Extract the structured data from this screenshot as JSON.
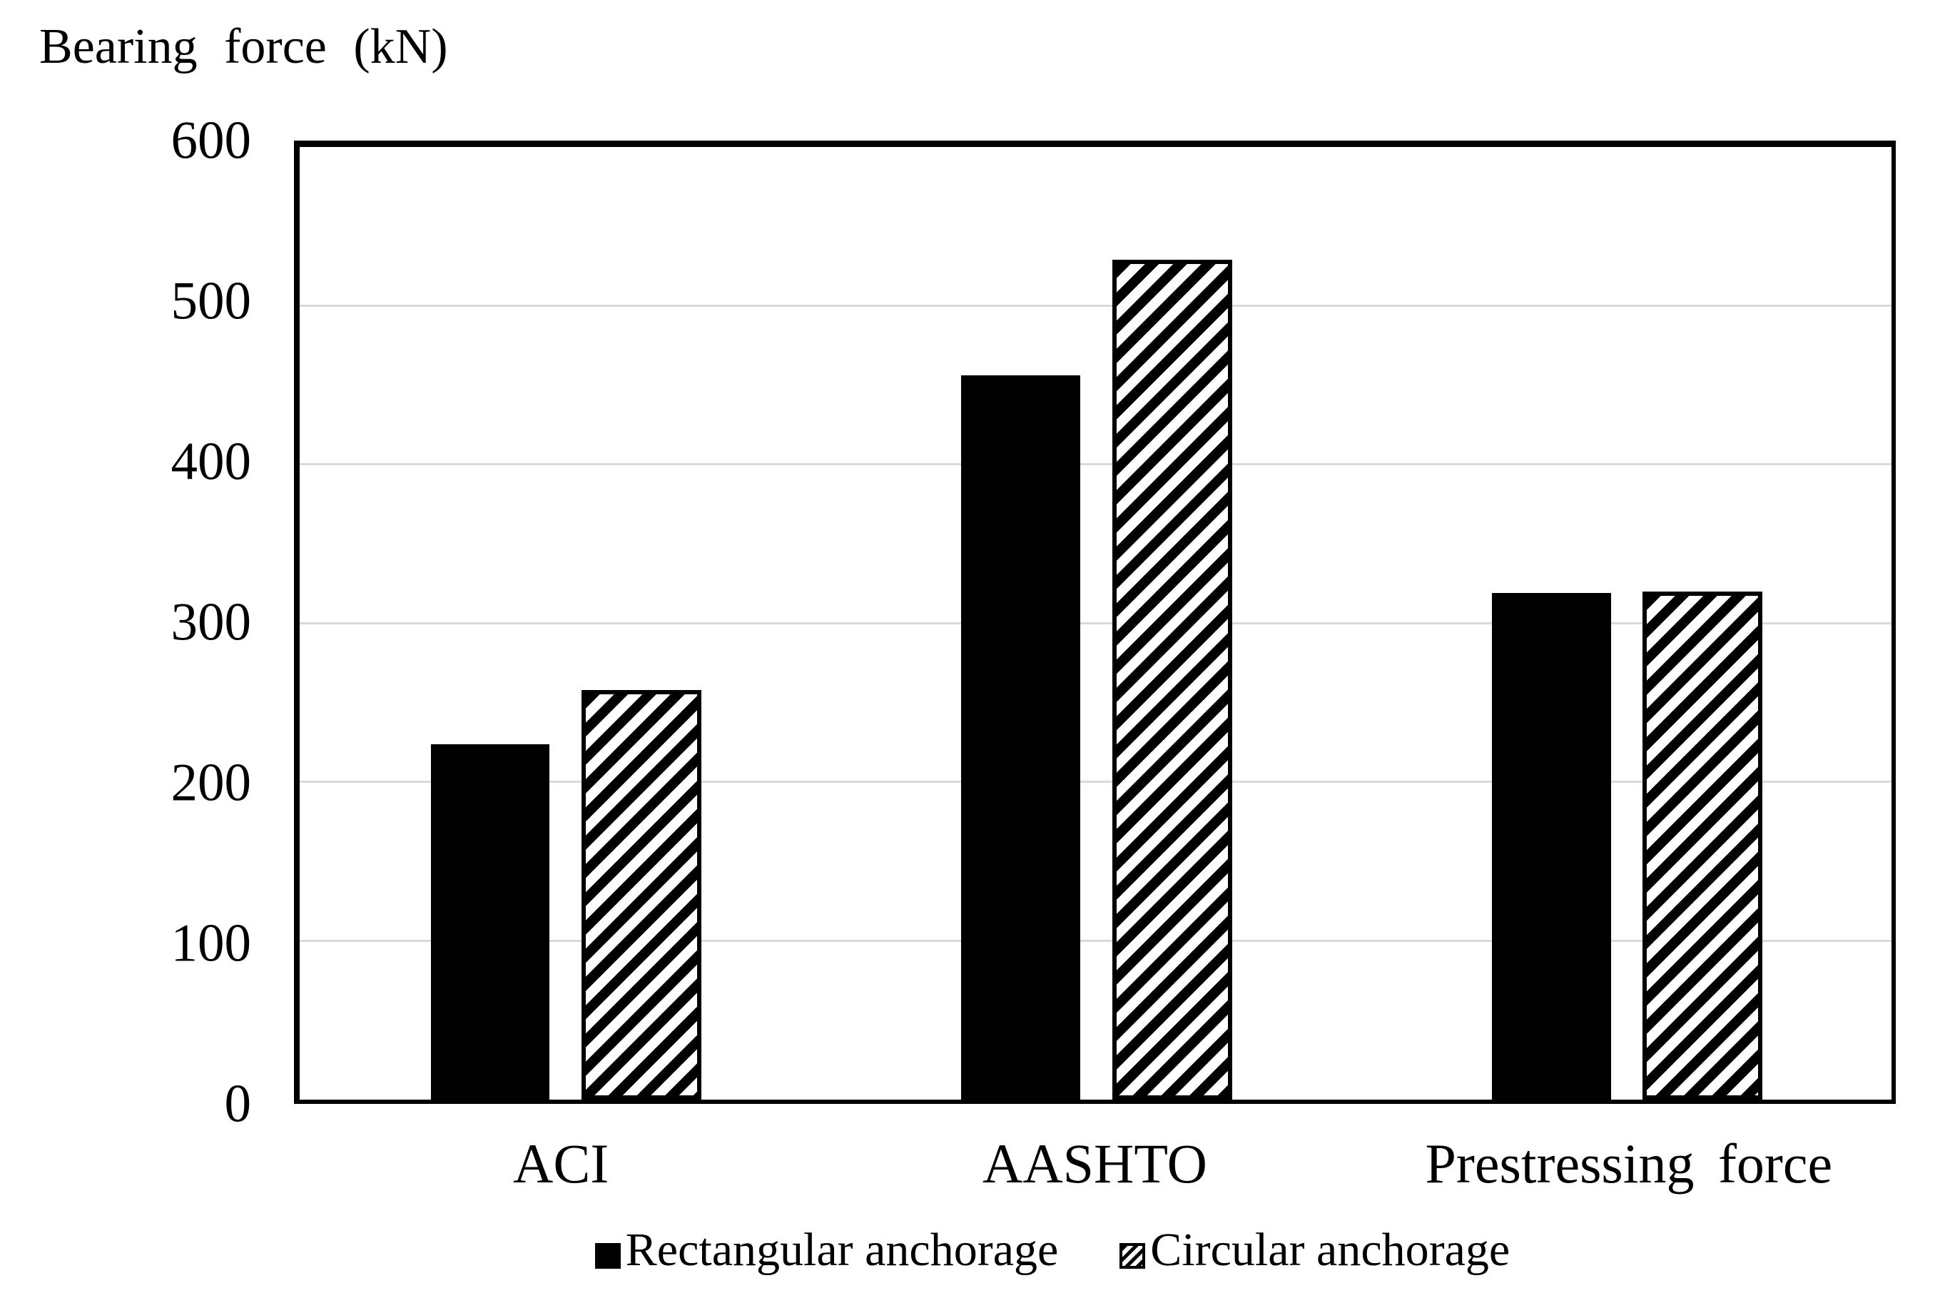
{
  "title": "Bearing force (kN)",
  "chart_data": {
    "type": "bar",
    "title": "Bearing force (kN)",
    "ylabel": "Bearing force (kN)",
    "xlabel": "",
    "categories": [
      "ACI",
      "AASHTO",
      "Prestressing force"
    ],
    "series": [
      {
        "name": "Rectangular anchorage",
        "style": "solid",
        "fill": "solid-black",
        "values": [
          224,
          456,
          319
        ]
      },
      {
        "name": "Circular anchorage",
        "style": "hatched",
        "fill": "diagonal-hatch",
        "values": [
          258,
          529,
          320
        ]
      }
    ],
    "ylim": [
      0,
      600
    ],
    "yticks": [
      0,
      100,
      200,
      300,
      400,
      500,
      600
    ],
    "grid": "horizontal",
    "gridline_values": [
      100,
      200,
      300,
      400,
      500
    ],
    "legend_position": "bottom"
  },
  "legend": {
    "items": [
      {
        "label": "Rectangular anchorage",
        "marker": "solid-square"
      },
      {
        "label": "Circular anchorage",
        "marker": "hatched-square"
      }
    ]
  },
  "colors": {
    "bar_fill": "#000000",
    "hatch_stripe": "#000000",
    "background": "#ffffff",
    "gridline": "#d9d9d9",
    "axis": "#000000",
    "text": "#000000"
  }
}
